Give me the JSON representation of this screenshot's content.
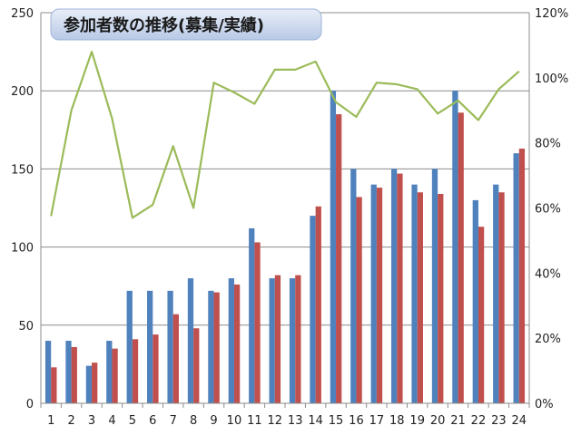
{
  "chart_data": {
    "type": "bar",
    "title": "参加者数の推移(募集/実績)",
    "categories": [
      "1",
      "2",
      "3",
      "4",
      "5",
      "6",
      "7",
      "8",
      "9",
      "10",
      "11",
      "12",
      "13",
      "14",
      "15",
      "16",
      "17",
      "18",
      "19",
      "20",
      "21",
      "22",
      "23",
      "24"
    ],
    "series": [
      {
        "type": "bar",
        "axis": "left",
        "color": "#4f81bd",
        "values": [
          40,
          40,
          24,
          40,
          72,
          72,
          72,
          80,
          72,
          80,
          112,
          80,
          80,
          120,
          200,
          150,
          140,
          150,
          140,
          150,
          200,
          130,
          140,
          160
        ]
      },
      {
        "type": "bar",
        "axis": "left",
        "color": "#c0504d",
        "values": [
          23,
          36,
          26,
          35,
          41,
          44,
          57,
          48,
          71,
          76,
          103,
          82,
          82,
          126,
          185,
          132,
          138,
          147,
          135,
          134,
          186,
          113,
          135,
          163
        ]
      },
      {
        "type": "line",
        "axis": "right",
        "color": "#9bbb59",
        "values": [
          57.5,
          90,
          108,
          87.5,
          57,
          61,
          79,
          60,
          98.5,
          95.5,
          92,
          102.5,
          102.5,
          105,
          92.5,
          88,
          98.5,
          98,
          96.5,
          89,
          93,
          87,
          96.5,
          102
        ]
      }
    ],
    "y_left": {
      "min": 0,
      "max": 250,
      "ticks": [
        0,
        50,
        100,
        150,
        200,
        250
      ]
    },
    "y_right": {
      "min": 0,
      "max": 120,
      "ticks": [
        "0%",
        "20%",
        "40%",
        "60%",
        "80%",
        "100%",
        "120%"
      ]
    },
    "grid": true,
    "legend": "none"
  }
}
